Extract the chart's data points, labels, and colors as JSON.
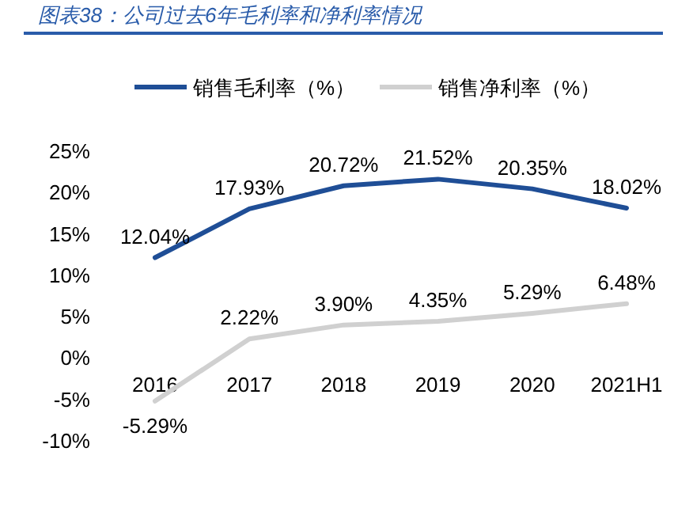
{
  "chart_data": {
    "type": "line",
    "title": "图表38：公司过去6年毛利率和净利率情况",
    "categories": [
      "2016",
      "2017",
      "2018",
      "2019",
      "2020",
      "2021H1"
    ],
    "series": [
      {
        "name": "销售毛利率（%）",
        "color": "#1f4e96",
        "values": [
          12.04,
          17.93,
          20.72,
          21.52,
          20.35,
          18.02
        ],
        "value_labels": [
          "12.04%",
          "17.93%",
          "20.72%",
          "21.52%",
          "20.35%",
          "18.02%"
        ]
      },
      {
        "name": "销售净利率（%）",
        "color": "#d0d0d0",
        "values": [
          -5.29,
          2.22,
          3.9,
          4.35,
          5.29,
          6.48
        ],
        "value_labels": [
          "-5.29%",
          "2.22%",
          "3.90%",
          "4.35%",
          "5.29%",
          "6.48%"
        ]
      }
    ],
    "ylim": [
      -10,
      25
    ],
    "yticks": [
      {
        "value": 25,
        "label": "25%"
      },
      {
        "value": 20,
        "label": "20%"
      },
      {
        "value": 15,
        "label": "15%"
      },
      {
        "value": 10,
        "label": "10%"
      },
      {
        "value": 5,
        "label": "5%"
      },
      {
        "value": 0,
        "label": "0%"
      },
      {
        "value": -5,
        "label": "-5%"
      },
      {
        "value": -10,
        "label": "-10%"
      }
    ],
    "legend": "top",
    "grid": false,
    "marker": "none",
    "line_style": "solid"
  }
}
